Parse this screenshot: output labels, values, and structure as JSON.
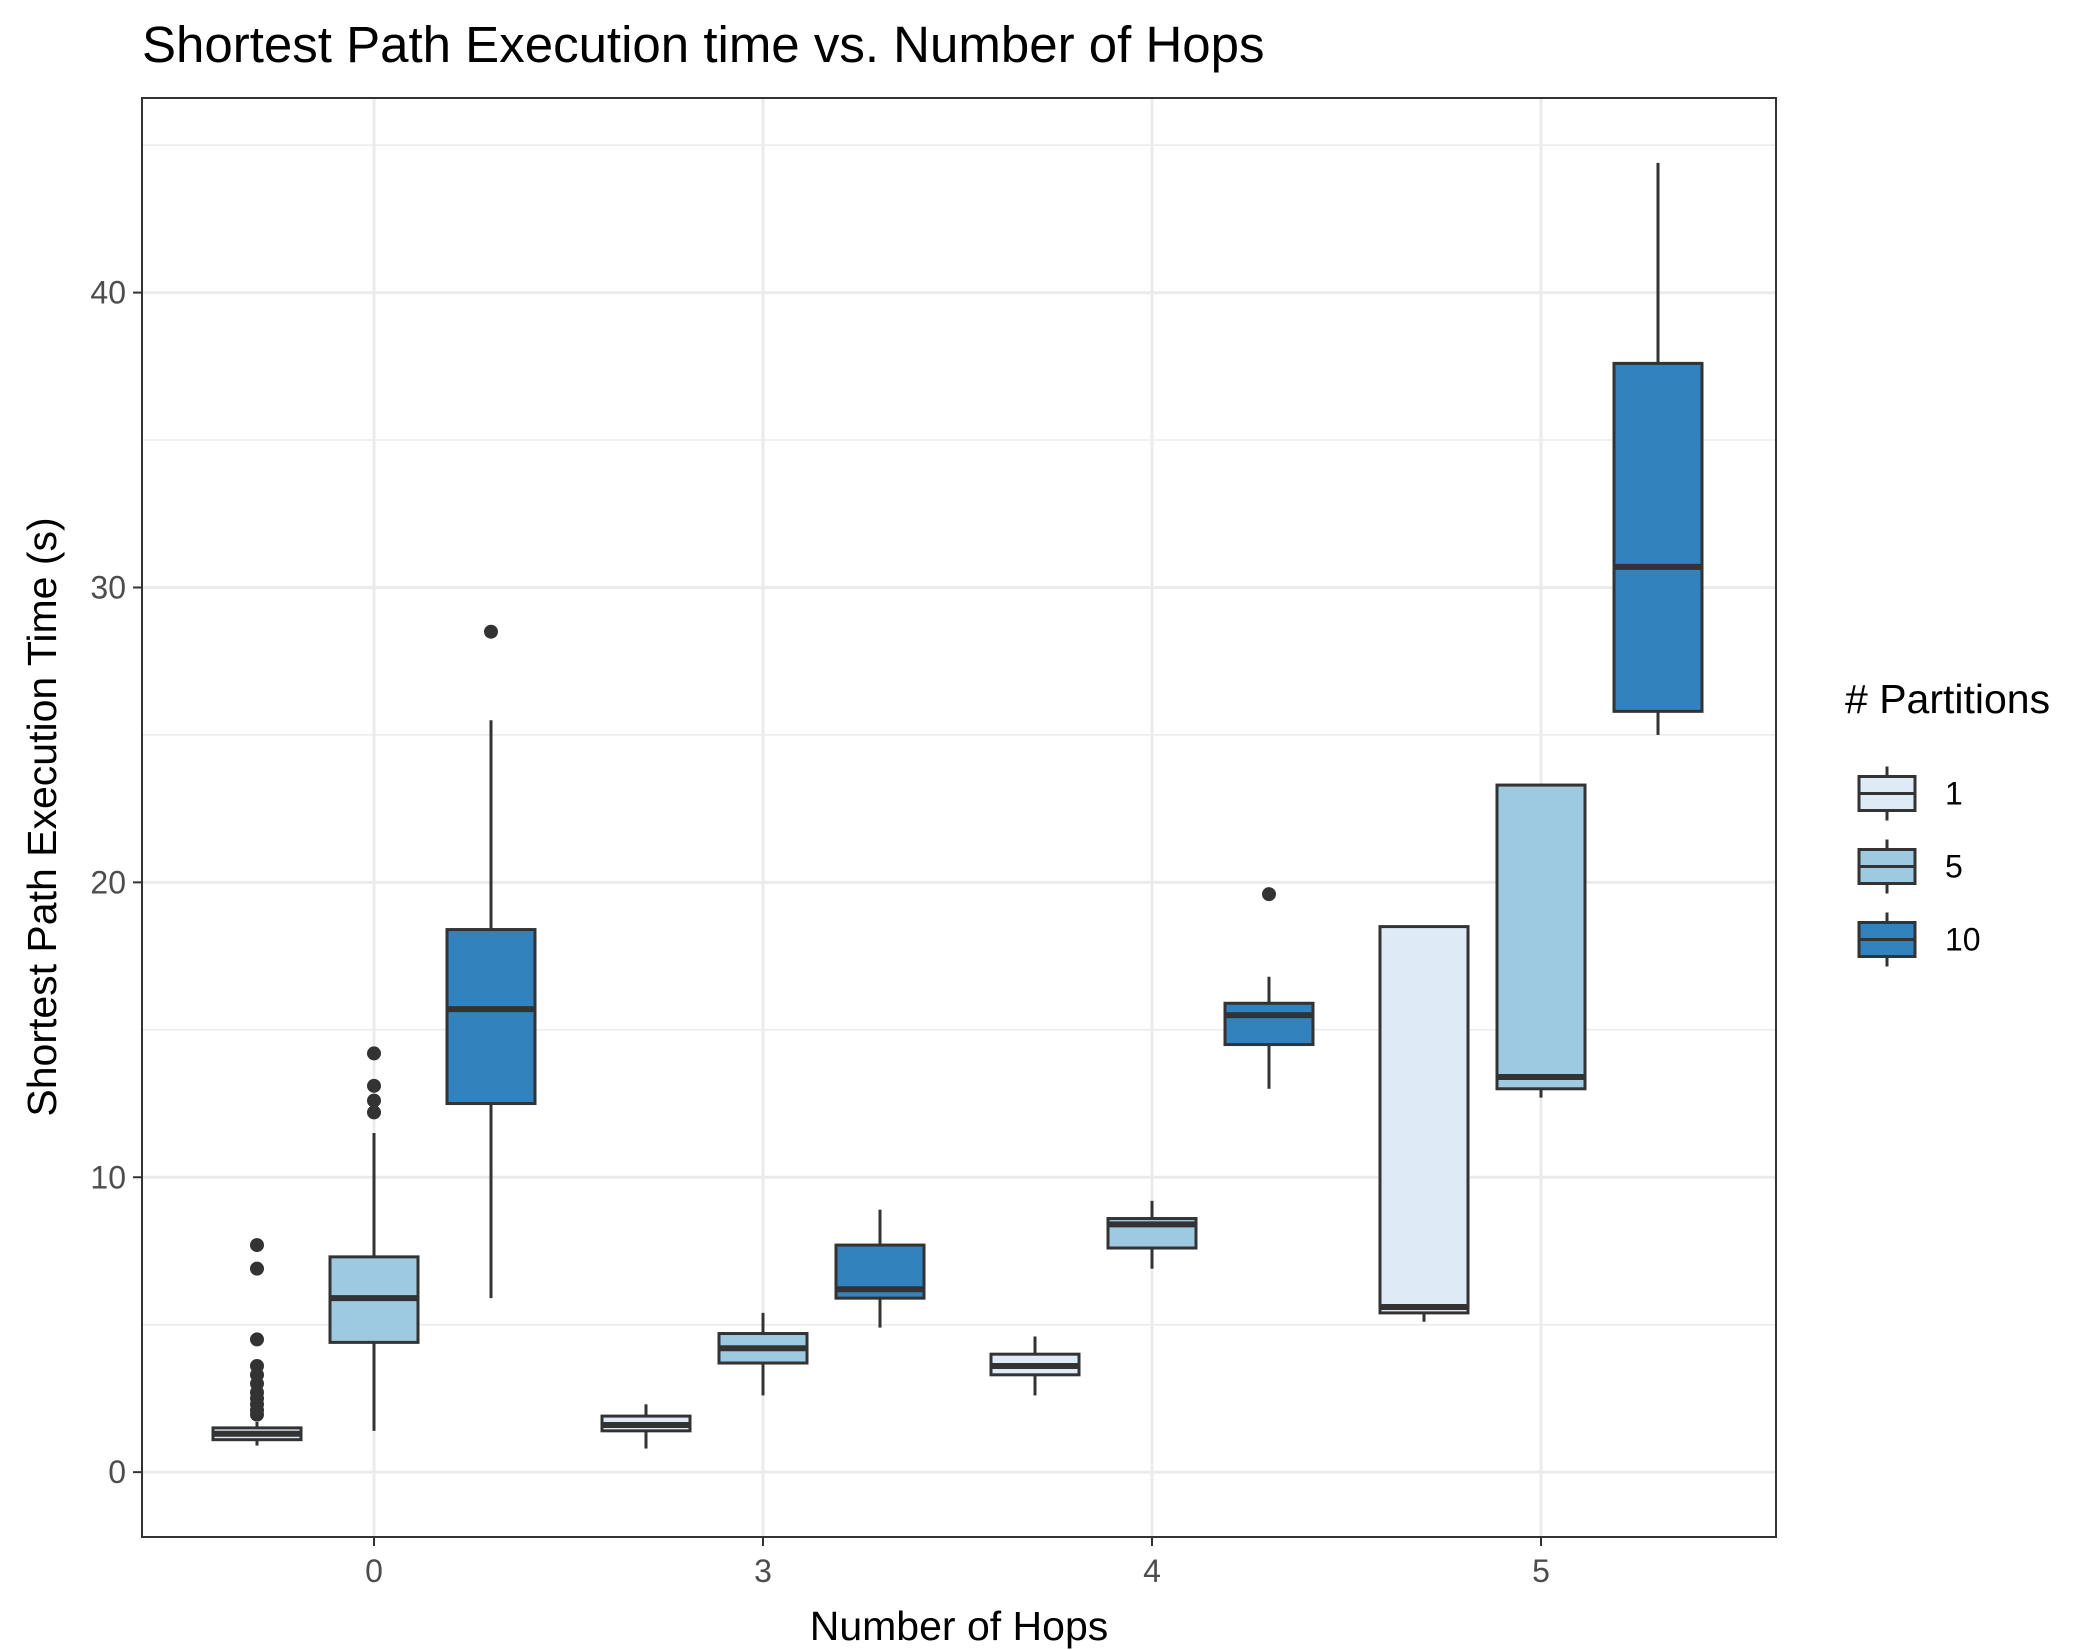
{
  "chart_data": {
    "type": "boxplot",
    "title": "Shortest Path Execution time vs. Number of Hops",
    "xlabel": "Number of Hops",
    "ylabel": "Shortest Path Execution Time (s)",
    "categories": [
      "0",
      "3",
      "4",
      "5"
    ],
    "ylim": [
      -2.2,
      46.6
    ],
    "yticks": [
      0,
      10,
      20,
      30,
      40
    ],
    "grid": true,
    "legend": {
      "title": "# Partitions",
      "position": "right",
      "entries": [
        "1",
        "5",
        "10"
      ]
    },
    "series": [
      {
        "name": "1",
        "color": "#deebf7",
        "boxes": [
          {
            "category": "0",
            "whisker_low": 0.9,
            "q1": 1.1,
            "median": 1.3,
            "q3": 1.5,
            "whisker_high": 1.7,
            "outliers": [
              7.7,
              6.9,
              4.5,
              3.6,
              3.3,
              3.0,
              2.7,
              2.5,
              2.3,
              2.1,
              1.95
            ]
          },
          {
            "category": "3",
            "whisker_low": 0.8,
            "q1": 1.4,
            "median": 1.6,
            "q3": 1.9,
            "whisker_high": 2.3,
            "outliers": []
          },
          {
            "category": "4",
            "whisker_low": 2.6,
            "q1": 3.3,
            "median": 3.6,
            "q3": 4.0,
            "whisker_high": 4.6,
            "outliers": []
          },
          {
            "category": "5",
            "whisker_low": 5.1,
            "q1": 5.4,
            "median": 5.6,
            "q3": 18.5,
            "whisker_high": 18.5,
            "outliers": []
          }
        ]
      },
      {
        "name": "5",
        "color": "#9ecae1",
        "boxes": [
          {
            "category": "0",
            "whisker_low": 1.4,
            "q1": 4.4,
            "median": 5.9,
            "q3": 7.3,
            "whisker_high": 11.5,
            "outliers": [
              14.2,
              13.1,
              12.6,
              12.2
            ]
          },
          {
            "category": "3",
            "whisker_low": 2.6,
            "q1": 3.7,
            "median": 4.2,
            "q3": 4.7,
            "whisker_high": 5.4,
            "outliers": []
          },
          {
            "category": "4",
            "whisker_low": 6.9,
            "q1": 7.6,
            "median": 8.4,
            "q3": 8.6,
            "whisker_high": 9.2,
            "outliers": []
          },
          {
            "category": "5",
            "whisker_low": 12.7,
            "q1": 13.0,
            "median": 13.4,
            "q3": 23.3,
            "whisker_high": 23.3,
            "outliers": []
          }
        ]
      },
      {
        "name": "10",
        "color": "#3182bd",
        "boxes": [
          {
            "category": "0",
            "whisker_low": 5.9,
            "q1": 12.5,
            "median": 15.7,
            "q3": 18.4,
            "whisker_high": 25.5,
            "outliers": [
              28.5
            ]
          },
          {
            "category": "3",
            "whisker_low": 4.9,
            "q1": 5.9,
            "median": 6.2,
            "q3": 7.7,
            "whisker_high": 8.9,
            "outliers": []
          },
          {
            "category": "4",
            "whisker_low": 13.0,
            "q1": 14.5,
            "median": 15.5,
            "q3": 15.9,
            "whisker_high": 16.8,
            "outliers": [
              19.6
            ]
          },
          {
            "category": "5",
            "whisker_low": 25.0,
            "q1": 25.8,
            "median": 30.7,
            "q3": 37.6,
            "whisker_high": 44.4,
            "outliers": []
          }
        ]
      }
    ]
  }
}
